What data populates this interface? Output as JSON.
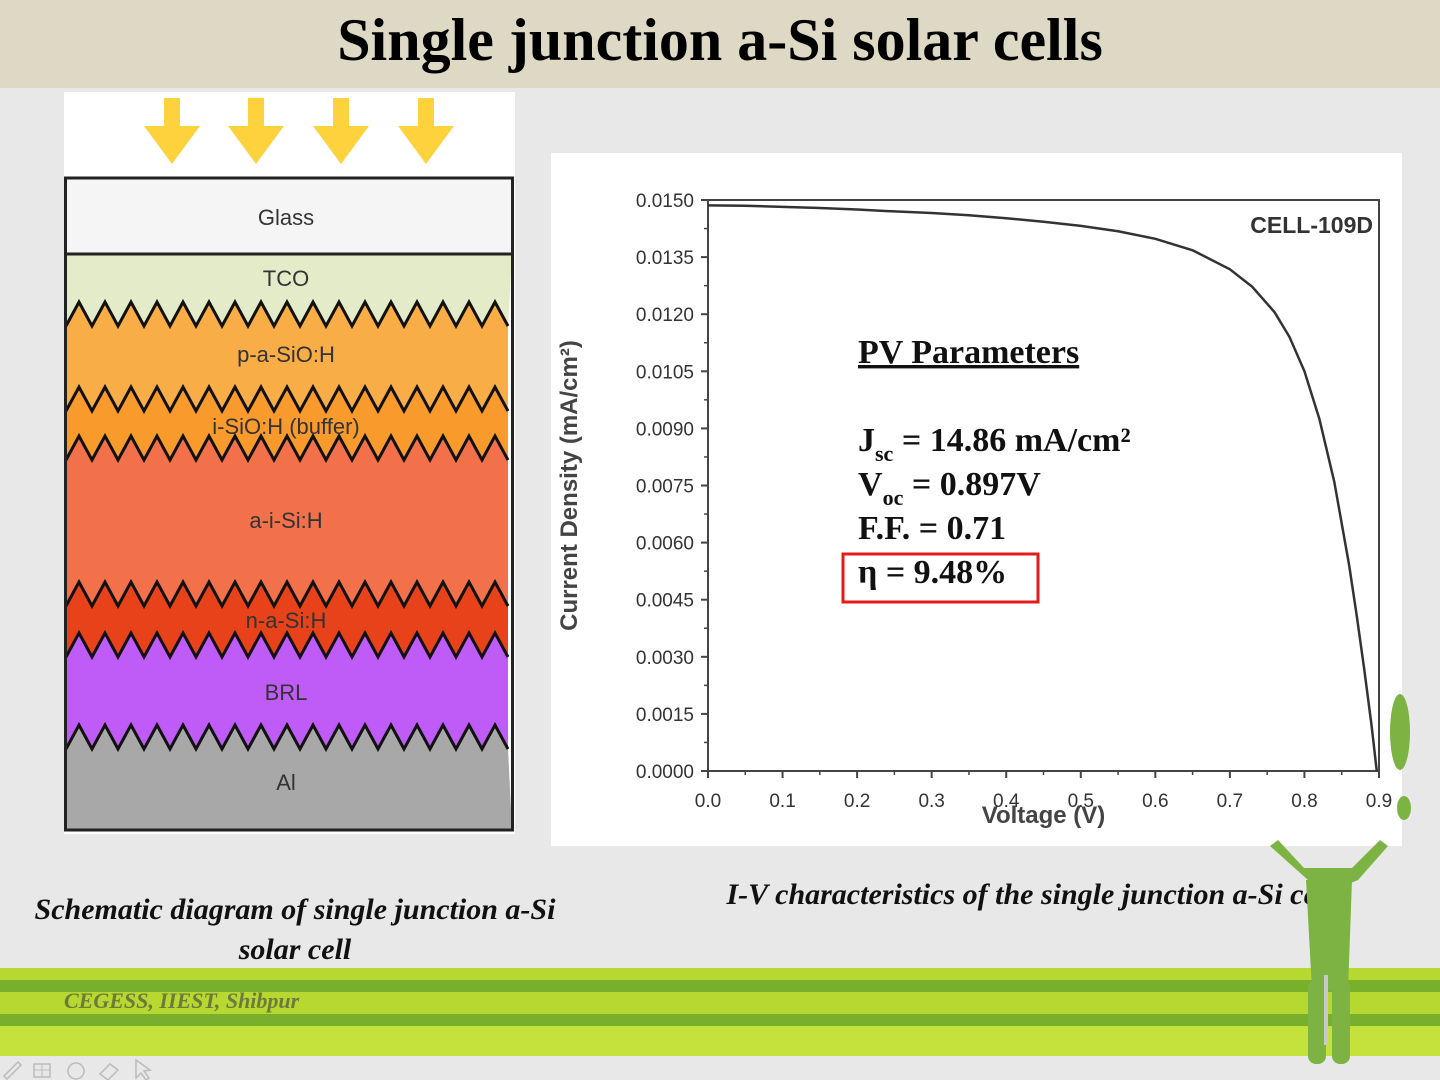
{
  "slide": {
    "title": "Single junction a-Si solar cells",
    "footer": "CEGESS, IIEST, Shibpur"
  },
  "schematic": {
    "layers": [
      {
        "label": "Glass",
        "color": "#f5f5f5"
      },
      {
        "label": "TCO",
        "color": "#e3ebc8"
      },
      {
        "label": "p-a-SiO:H",
        "color": "#f9ad47"
      },
      {
        "label": "i-SiO:H (buffer)",
        "color": "#f99b2c"
      },
      {
        "label": "a-i-Si:H",
        "color": "#f2714b"
      },
      {
        "label": "n-a-Si:H",
        "color": "#e8421a"
      },
      {
        "label": "BRL",
        "color": "#bf5cf7"
      },
      {
        "label": "Al",
        "color": "#a8a8a8"
      }
    ],
    "caption_line1": "Schematic diagram of single junction a-Si",
    "caption_line2": "solar cell"
  },
  "chart_data": {
    "type": "line",
    "title": "",
    "xlabel": "Voltage (V)",
    "ylabel": "Current Density (mA/cm²)",
    "xlim": [
      0,
      0.9
    ],
    "ylim": [
      0,
      0.015
    ],
    "x_ticks": [
      "0.0",
      "0.1",
      "0.2",
      "0.3",
      "0.4",
      "0.5",
      "0.6",
      "0.7",
      "0.8",
      "0.9"
    ],
    "y_ticks": [
      "0.0000",
      "0.0015",
      "0.0030",
      "0.0045",
      "0.0060",
      "0.0075",
      "0.0090",
      "0.0105",
      "0.0120",
      "0.0135",
      "0.0150"
    ],
    "series": [
      {
        "name": "CELL-109D",
        "x": [
          0,
          0.05,
          0.1,
          0.15,
          0.2,
          0.25,
          0.3,
          0.35,
          0.4,
          0.45,
          0.5,
          0.55,
          0.6,
          0.65,
          0.7,
          0.73,
          0.76,
          0.78,
          0.8,
          0.82,
          0.84,
          0.86,
          0.87,
          0.88,
          0.89,
          0.897
        ],
        "y": [
          0.01486,
          0.01485,
          0.01482,
          0.01479,
          0.01475,
          0.0147,
          0.01466,
          0.0146,
          0.01452,
          0.01443,
          0.01432,
          0.01418,
          0.01398,
          0.01368,
          0.01318,
          0.01272,
          0.01205,
          0.0114,
          0.0105,
          0.00925,
          0.0076,
          0.0054,
          0.0041,
          0.0027,
          0.0012,
          0.0
        ]
      }
    ],
    "annotation_title": "PV Parameters",
    "params": [
      {
        "sym": "J",
        "sub": "sc",
        "rest": " = 14.86 mA/cm²"
      },
      {
        "sym": "V",
        "sub": "oc",
        "rest": " = 0.897V"
      },
      {
        "sym": "F.F.",
        "sub": "",
        "rest": " = 0.71"
      },
      {
        "sym": "η",
        "sub": "",
        "rest": " = 9.48%"
      }
    ],
    "accent_box_color": "#e31b1b",
    "caption": "I-V characteristics of the single junction a-Si cell"
  }
}
